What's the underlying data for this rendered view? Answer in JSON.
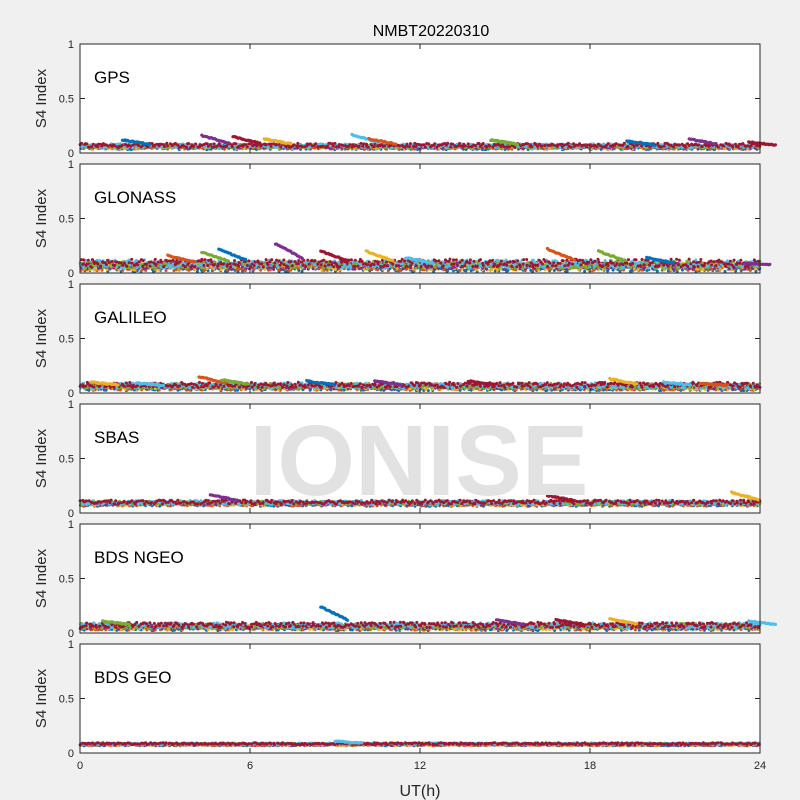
{
  "chart_data": {
    "type": "scatter",
    "title": "NMBT20220310",
    "xlabel": "UT(h)",
    "ylabel": "S4 Index",
    "xlim": [
      0,
      24
    ],
    "ylim": [
      0,
      1
    ],
    "xticks": [
      "0",
      "6",
      "12",
      "18",
      "24"
    ],
    "yticks": [
      "0",
      "0.5",
      "1"
    ],
    "watermark": "IONISE",
    "series_colors": [
      "#0072BD",
      "#D95319",
      "#EDB120",
      "#7E2F8E",
      "#77AC30",
      "#4DBEEE",
      "#A2142F"
    ],
    "panels": [
      {
        "label": "GPS",
        "baseline": 0.06,
        "spread": 0.03,
        "features": [
          {
            "x": 1.5,
            "y": 0.12
          },
          {
            "x": 4.3,
            "y": 0.16
          },
          {
            "x": 5.4,
            "y": 0.15
          },
          {
            "x": 6.5,
            "y": 0.13
          },
          {
            "x": 9.6,
            "y": 0.17
          },
          {
            "x": 10.2,
            "y": 0.13
          },
          {
            "x": 14.5,
            "y": 0.12
          },
          {
            "x": 19.3,
            "y": 0.11
          },
          {
            "x": 21.5,
            "y": 0.13
          },
          {
            "x": 23.6,
            "y": 0.1
          }
        ]
      },
      {
        "label": "GLONASS",
        "baseline": 0.07,
        "spread": 0.06,
        "features": [
          {
            "x": 3.1,
            "y": 0.16
          },
          {
            "x": 4.3,
            "y": 0.19
          },
          {
            "x": 4.9,
            "y": 0.22
          },
          {
            "x": 6.9,
            "y": 0.27
          },
          {
            "x": 8.5,
            "y": 0.2
          },
          {
            "x": 10.1,
            "y": 0.2
          },
          {
            "x": 11.5,
            "y": 0.14
          },
          {
            "x": 16.5,
            "y": 0.22
          },
          {
            "x": 18.3,
            "y": 0.2
          },
          {
            "x": 20.0,
            "y": 0.14
          },
          {
            "x": 23.4,
            "y": 0.09
          }
        ]
      },
      {
        "label": "GALILEO",
        "baseline": 0.06,
        "spread": 0.04,
        "features": [
          {
            "x": 0.4,
            "y": 0.1
          },
          {
            "x": 2.0,
            "y": 0.09
          },
          {
            "x": 4.2,
            "y": 0.15
          },
          {
            "x": 5.0,
            "y": 0.12
          },
          {
            "x": 8.0,
            "y": 0.11
          },
          {
            "x": 10.4,
            "y": 0.11
          },
          {
            "x": 13.7,
            "y": 0.11
          },
          {
            "x": 18.7,
            "y": 0.13
          },
          {
            "x": 20.6,
            "y": 0.1
          },
          {
            "x": 21.9,
            "y": 0.09
          }
        ]
      },
      {
        "label": "SBAS",
        "baseline": 0.09,
        "spread": 0.03,
        "features": [
          {
            "x": 4.6,
            "y": 0.17
          },
          {
            "x": 16.5,
            "y": 0.16
          },
          {
            "x": 23.0,
            "y": 0.19
          }
        ]
      },
      {
        "label": "BDS NGEO",
        "baseline": 0.06,
        "spread": 0.04,
        "features": [
          {
            "x": 0.8,
            "y": 0.11
          },
          {
            "x": 8.5,
            "y": 0.24
          },
          {
            "x": 14.7,
            "y": 0.12
          },
          {
            "x": 16.8,
            "y": 0.12
          },
          {
            "x": 18.7,
            "y": 0.13
          },
          {
            "x": 23.6,
            "y": 0.11
          }
        ]
      },
      {
        "label": "BDS GEO",
        "baseline": 0.08,
        "spread": 0.015,
        "features": [
          {
            "x": 9.0,
            "y": 0.11
          }
        ]
      }
    ]
  }
}
